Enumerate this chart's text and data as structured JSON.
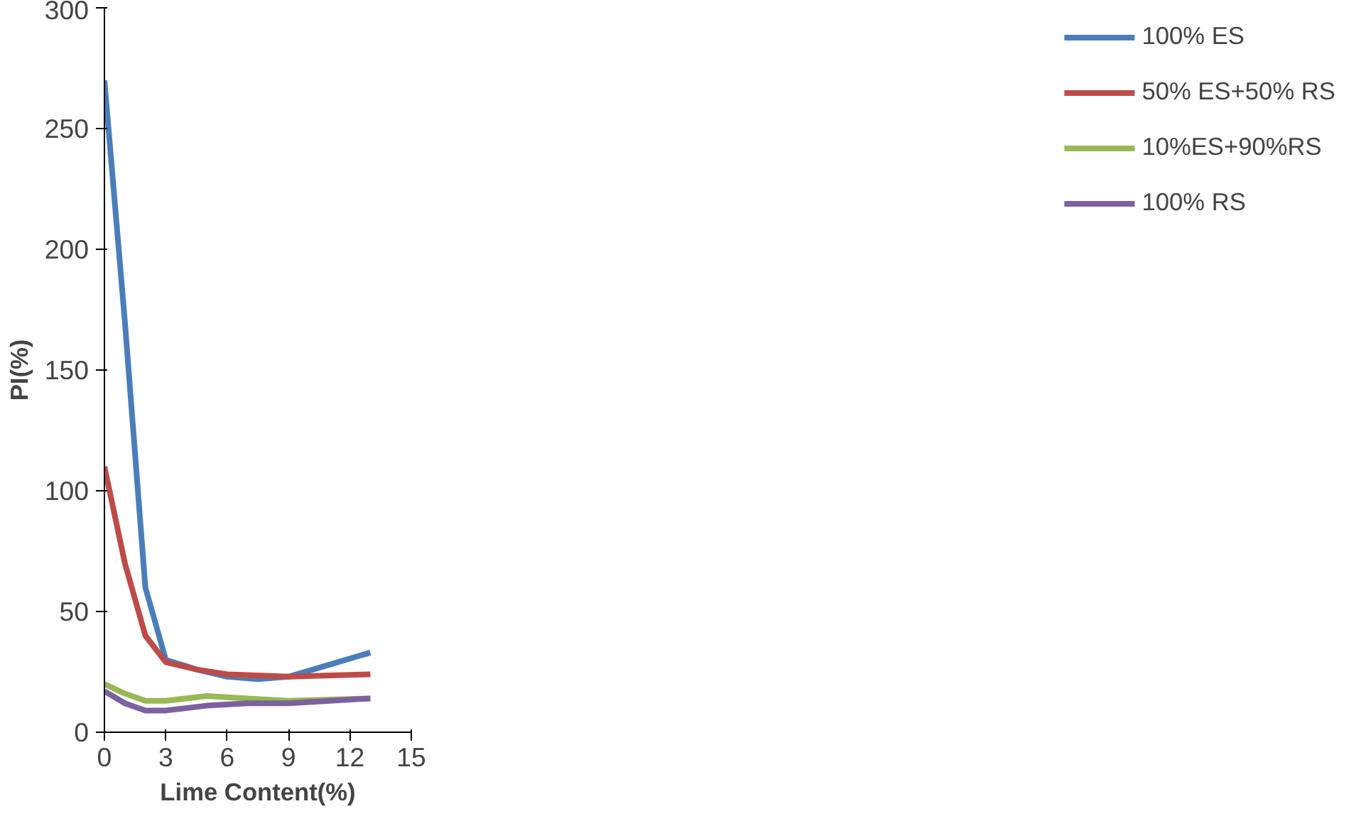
{
  "chart_data": {
    "type": "line",
    "xlabel": "Lime Content(%)",
    "ylabel": "PI(%)",
    "xlim": [
      0,
      15
    ],
    "ylim": [
      0,
      300
    ],
    "xticks": [
      0,
      3,
      6,
      9,
      12,
      15
    ],
    "yticks": [
      0,
      50,
      100,
      150,
      200,
      250,
      300
    ],
    "grid": false,
    "legend": "right",
    "marker": "none",
    "line_style": "solid",
    "series": [
      {
        "name": "100% ES",
        "color": "#4a7ebb",
        "x": [
          0,
          1,
          2,
          3,
          4.5,
          6,
          7.5,
          9,
          11,
          13
        ],
        "values": [
          270,
          170,
          60,
          30,
          26,
          23,
          22,
          23,
          28,
          33
        ]
      },
      {
        "name": "50% ES+50% RS",
        "color": "#be4b48",
        "x": [
          0,
          1,
          2,
          3,
          4.5,
          6,
          9,
          13
        ],
        "values": [
          110,
          70,
          40,
          29,
          26,
          24,
          23,
          24
        ]
      },
      {
        "name": "10%ES+90%RS",
        "color": "#98b954",
        "x": [
          0,
          1,
          2,
          3,
          5,
          7,
          9,
          13
        ],
        "values": [
          20,
          16,
          13,
          13,
          15,
          14,
          13,
          14
        ]
      },
      {
        "name": "100% RS",
        "color": "#7d60a0",
        "x": [
          0,
          1,
          2,
          3,
          5,
          7,
          9,
          13
        ],
        "values": [
          17,
          12,
          9,
          9,
          11,
          12,
          12,
          14
        ]
      }
    ]
  }
}
